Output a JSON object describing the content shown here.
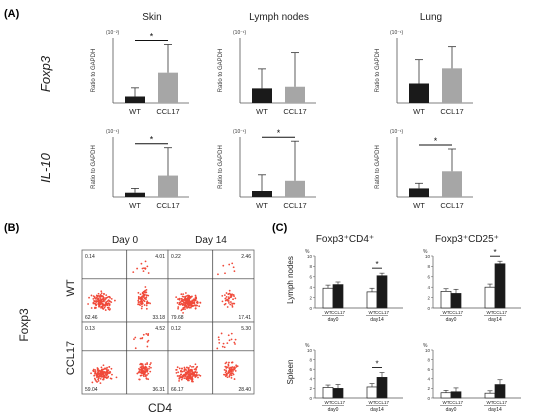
{
  "panels": {
    "a": "(A)",
    "b": "(B)",
    "c": "(C)"
  },
  "panel_a": {
    "columns": [
      "Skin",
      "Lymph nodes",
      "Lung"
    ],
    "rows": [
      "Foxp3",
      "IL-10"
    ],
    "ylabel": "Ratio to GAPDH",
    "groups": [
      "WT",
      "CCL17"
    ],
    "colors": [
      "#1a1a1a",
      "#a6a6a6"
    ],
    "sig": "*"
  },
  "panel_b": {
    "columns": [
      "Day 0",
      "Day 14"
    ],
    "rows": [
      "WT",
      "CCL17"
    ],
    "xlabel": "CD4",
    "ylabel": "Foxp3",
    "dot_color": "#f04a3a",
    "quadrants": [
      [
        "0.14",
        "4.01",
        "62.46",
        "33.18"
      ],
      [
        "0.22",
        "2.46",
        "79.68",
        "17.41"
      ],
      [
        "0.13",
        "4.52",
        "59.04",
        "36.31"
      ],
      [
        "0.12",
        "5.30",
        "66.17",
        "28.40"
      ]
    ]
  },
  "panel_c": {
    "columns": [
      "Foxp3⁺CD4⁺",
      "Foxp3⁺CD25⁺"
    ],
    "rows": [
      "Lymph nodes",
      "Spleen"
    ],
    "unit": "%",
    "days": [
      "day0",
      "day14"
    ],
    "groups": [
      "WT",
      "CCL17"
    ],
    "colors": [
      "#ffffff",
      "#1a1a1a"
    ],
    "sig": "*"
  },
  "chart_data": [
    {
      "type": "bar",
      "title": "Skin",
      "row": "Foxp3",
      "categories": [
        "WT",
        "CCL17"
      ],
      "values": [
        0.03,
        0.14
      ],
      "errors": [
        0.04,
        0.13
      ],
      "ylim": [
        0,
        0.3
      ],
      "unit": "(10⁻²)",
      "significant": true
    },
    {
      "type": "bar",
      "title": "Lymph nodes",
      "row": "Foxp3",
      "categories": [
        "WT",
        "CCL17"
      ],
      "values": [
        0.09,
        0.1
      ],
      "errors": [
        0.12,
        0.21
      ],
      "ylim": [
        0,
        0.4
      ],
      "unit": "(10⁻¹)",
      "significant": false
    },
    {
      "type": "bar",
      "title": "Lung",
      "row": "Foxp3",
      "categories": [
        "WT",
        "CCL17"
      ],
      "values": [
        0.09,
        0.16
      ],
      "errors": [
        0.11,
        0.1
      ],
      "ylim": [
        0,
        0.3
      ],
      "unit": "(10⁻¹)",
      "significant": false
    },
    {
      "type": "bar",
      "title": "Skin",
      "row": "IL-10",
      "categories": [
        "WT",
        "CCL17"
      ],
      "values": [
        0.1,
        0.5
      ],
      "errors": [
        0.1,
        0.65
      ],
      "ylim": [
        0,
        1.4
      ],
      "unit": "(10⁻¹)",
      "significant": true
    },
    {
      "type": "bar",
      "title": "Lymph nodes",
      "row": "IL-10",
      "categories": [
        "WT",
        "CCL17"
      ],
      "values": [
        0.1,
        0.27
      ],
      "errors": [
        0.27,
        0.66
      ],
      "ylim": [
        0,
        1.0
      ],
      "unit": "(10⁻¹)",
      "significant": true
    },
    {
      "type": "bar",
      "title": "Lung",
      "row": "IL-10",
      "categories": [
        "WT",
        "CCL17"
      ],
      "values": [
        0.05,
        0.15
      ],
      "errors": [
        0.03,
        0.13
      ],
      "ylim": [
        0,
        0.35
      ],
      "unit": "(10⁻¹)",
      "significant": true
    },
    {
      "type": "bar",
      "title": "Foxp3⁺CD4⁺",
      "row": "Lymph nodes",
      "categories": [
        "day0",
        "day14"
      ],
      "series": [
        {
          "name": "WT",
          "values": [
            3.8,
            3.1
          ]
        },
        {
          "name": "CCL17",
          "values": [
            4.5,
            6.2
          ]
        }
      ],
      "errors": [
        [
          0.6,
          0.7
        ],
        [
          0.5,
          0.5
        ]
      ],
      "ylim": [
        0,
        10
      ],
      "yticks": [
        0,
        2,
        4,
        6,
        8,
        10
      ],
      "significant": [
        false,
        true
      ]
    },
    {
      "type": "bar",
      "title": "Foxp3⁺CD25⁺",
      "row": "Lymph nodes",
      "categories": [
        "day0",
        "day14"
      ],
      "series": [
        {
          "name": "WT",
          "values": [
            3.2,
            4.0
          ]
        },
        {
          "name": "CCL17",
          "values": [
            2.8,
            8.5
          ]
        }
      ],
      "errors": [
        [
          0.5,
          0.6
        ],
        [
          0.8,
          0.5
        ]
      ],
      "ylim": [
        0,
        10
      ],
      "yticks": [
        0,
        2,
        4,
        6,
        8,
        10
      ],
      "significant": [
        false,
        true
      ]
    },
    {
      "type": "bar",
      "title": "Foxp3⁺CD4⁺",
      "row": "Spleen",
      "categories": [
        "day0",
        "day14"
      ],
      "series": [
        {
          "name": "WT",
          "values": [
            2.2,
            2.3
          ]
        },
        {
          "name": "CCL17",
          "values": [
            2.0,
            4.3
          ]
        }
      ],
      "errors": [
        [
          0.5,
          0.7
        ],
        [
          0.8,
          1.0
        ]
      ],
      "ylim": [
        0,
        10
      ],
      "yticks": [
        0,
        2,
        4,
        6,
        8,
        10
      ],
      "significant": [
        false,
        true
      ]
    },
    {
      "type": "bar",
      "title": "Foxp3⁺CD25⁺",
      "row": "Spleen",
      "categories": [
        "day0",
        "day14"
      ],
      "series": [
        {
          "name": "WT",
          "values": [
            1.1,
            1.0
          ]
        },
        {
          "name": "CCL17",
          "values": [
            1.3,
            2.8
          ]
        }
      ],
      "errors": [
        [
          0.5,
          0.5
        ],
        [
          0.8,
          1.0
        ]
      ],
      "ylim": [
        0,
        10
      ],
      "yticks": [
        0,
        2,
        4,
        6,
        8,
        10
      ],
      "significant": [
        false,
        false
      ]
    }
  ]
}
